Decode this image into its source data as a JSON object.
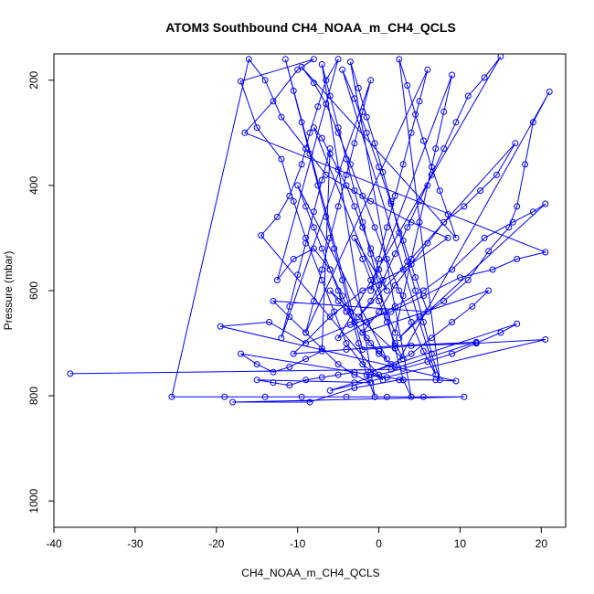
{
  "chart_data": {
    "type": "scatter",
    "title": "ATOM3 Southbound CH4_NOAA_m_CH4_QCLS",
    "xlabel": "CH4_NOAA_m_CH4_QCLS",
    "ylabel": "Pressure (mbar)",
    "xlim": [
      -40,
      23
    ],
    "ylim": [
      1050,
      150
    ],
    "y_reversed": true,
    "x_ticks": [
      -40,
      -30,
      -20,
      -10,
      0,
      10,
      20
    ],
    "x_tick_labels": [
      "-40",
      "-30",
      "-20",
      "-10",
      "0",
      "10",
      "20"
    ],
    "y_ticks": [
      200,
      400,
      600,
      800,
      1000
    ],
    "y_tick_labels": [
      "200",
      "400",
      "600",
      "800",
      "1000"
    ],
    "grid": false,
    "legend": "none",
    "series": [
      {
        "color": "#0000ff",
        "marker": "open-circle",
        "connected": true,
        "points": [
          [
            -38.0,
            758
          ],
          [
            1.5,
            750
          ],
          [
            12.0,
            698
          ],
          [
            2.0,
            705
          ],
          [
            -4.0,
            712
          ],
          [
            -10.5,
            720
          ],
          [
            -6.0,
            650
          ],
          [
            -2.0,
            600
          ],
          [
            3.0,
            560
          ],
          [
            8.5,
            500
          ],
          [
            4.0,
            470
          ],
          [
            -1.0,
            430
          ],
          [
            -6.5,
            380
          ],
          [
            -9.0,
            330
          ],
          [
            -12.0,
            270
          ],
          [
            -14.0,
            200
          ],
          [
            -16.0,
            160
          ],
          [
            -25.5,
            802
          ],
          [
            -19.0,
            802
          ],
          [
            -14.0,
            802
          ],
          [
            -9.5,
            802
          ],
          [
            -4.0,
            802
          ],
          [
            1.0,
            802
          ],
          [
            5.5,
            802
          ],
          [
            10.5,
            802
          ],
          [
            -18.0,
            812
          ],
          [
            -8.5,
            812
          ],
          [
            -3.0,
            785
          ],
          [
            2.5,
            770
          ],
          [
            7.0,
            770
          ],
          [
            9.5,
            772
          ],
          [
            -19.5,
            668
          ],
          [
            -13.5,
            660
          ],
          [
            -9.0,
            700
          ],
          [
            -3.5,
            665
          ],
          [
            1.5,
            640
          ],
          [
            5.5,
            610
          ],
          [
            10.0,
            575
          ],
          [
            14.0,
            560
          ],
          [
            17.0,
            540
          ],
          [
            20.5,
            527
          ],
          [
            -16.5,
            300
          ],
          [
            -13.0,
            240
          ],
          [
            -10.0,
            180
          ],
          [
            -8.0,
            160
          ],
          [
            -17.0,
            202
          ],
          [
            -15.0,
            290
          ],
          [
            -12.0,
            350
          ],
          [
            -10.5,
            430
          ],
          [
            -9.0,
            500
          ],
          [
            -7.0,
            580
          ],
          [
            -5.5,
            640
          ],
          [
            -4.0,
            700
          ],
          [
            -2.0,
            740
          ],
          [
            0.5,
            770
          ],
          [
            -14.5,
            495
          ],
          [
            -12.5,
            460
          ],
          [
            -11.0,
            420
          ],
          [
            -9.5,
            360
          ],
          [
            -8.5,
            300
          ],
          [
            -7.5,
            250
          ],
          [
            -6.5,
            200
          ],
          [
            -5.0,
            160
          ],
          [
            -12.5,
            580
          ],
          [
            -10.5,
            540
          ],
          [
            -8.0,
            520
          ],
          [
            -6.0,
            560
          ],
          [
            -4.5,
            610
          ],
          [
            -3.0,
            660
          ],
          [
            -1.5,
            690
          ],
          [
            0.0,
            720
          ],
          [
            2.0,
            745
          ],
          [
            21.0,
            222
          ],
          [
            19.0,
            280
          ],
          [
            18.0,
            360
          ],
          [
            17.0,
            440
          ],
          [
            16.0,
            480
          ],
          [
            13.5,
            525
          ],
          [
            11.0,
            580
          ],
          [
            8.0,
            620
          ],
          [
            5.0,
            650
          ],
          [
            2.5,
            690
          ],
          [
            20.5,
            435
          ],
          [
            19.0,
            450
          ],
          [
            16.5,
            470
          ],
          [
            13.0,
            500
          ],
          [
            9.0,
            560
          ],
          [
            5.5,
            600
          ],
          [
            2.0,
            630
          ],
          [
            -1.5,
            660
          ],
          [
            -5.0,
            690
          ],
          [
            15.0,
            155
          ],
          [
            13.0,
            195
          ],
          [
            11.0,
            230
          ],
          [
            9.5,
            280
          ],
          [
            8.0,
            330
          ],
          [
            6.5,
            380
          ],
          [
            5.0,
            430
          ],
          [
            3.5,
            480
          ],
          [
            2.0,
            530
          ],
          [
            0.5,
            580
          ],
          [
            -1.0,
            620
          ],
          [
            -2.5,
            650
          ],
          [
            16.8,
            320
          ],
          [
            14.5,
            380
          ],
          [
            12.5,
            410
          ],
          [
            10.5,
            440
          ],
          [
            8.0,
            470
          ],
          [
            6.0,
            510
          ],
          [
            4.0,
            550
          ],
          [
            2.0,
            590
          ],
          [
            0.0,
            640
          ],
          [
            -2.0,
            680
          ],
          [
            13.5,
            600
          ],
          [
            11.5,
            630
          ],
          [
            9.0,
            660
          ],
          [
            6.5,
            690
          ],
          [
            4.0,
            720
          ],
          [
            1.5,
            740
          ],
          [
            -1.0,
            755
          ],
          [
            17.0,
            663
          ],
          [
            15.0,
            680
          ],
          [
            12.0,
            700
          ],
          [
            9.0,
            720
          ],
          [
            6.0,
            735
          ],
          [
            3.0,
            748
          ],
          [
            0.0,
            760
          ],
          [
            -3.0,
            775
          ],
          [
            -6.0,
            790
          ],
          [
            20.5,
            693
          ],
          [
            12.0,
            700
          ],
          [
            4.0,
            705
          ],
          [
            -2.0,
            712
          ],
          [
            -11.5,
            160
          ],
          [
            -10.5,
            220
          ],
          [
            -9.5,
            280
          ],
          [
            -8.5,
            340
          ],
          [
            -7.5,
            400
          ],
          [
            -6.5,
            460
          ],
          [
            -5.5,
            520
          ],
          [
            -4.5,
            580
          ],
          [
            -3.5,
            640
          ],
          [
            -2.5,
            700
          ],
          [
            -1.5,
            760
          ],
          [
            -0.5,
            802
          ],
          [
            -7.0,
            170
          ],
          [
            -6.0,
            230
          ],
          [
            -5.0,
            290
          ],
          [
            -4.0,
            350
          ],
          [
            -3.0,
            410
          ],
          [
            -2.0,
            470
          ],
          [
            -1.0,
            530
          ],
          [
            0.0,
            590
          ],
          [
            1.0,
            650
          ],
          [
            2.0,
            710
          ],
          [
            3.0,
            770
          ],
          [
            4.0,
            802
          ],
          [
            -3.5,
            165
          ],
          [
            -2.5,
            215
          ],
          [
            -1.5,
            270
          ],
          [
            -0.5,
            320
          ],
          [
            0.5,
            375
          ],
          [
            1.5,
            430
          ],
          [
            2.5,
            490
          ],
          [
            3.5,
            545
          ],
          [
            4.5,
            600
          ],
          [
            5.5,
            660
          ],
          [
            6.5,
            720
          ],
          [
            7.5,
            770
          ],
          [
            2.5,
            160
          ],
          [
            3.5,
            210
          ],
          [
            4.5,
            265
          ],
          [
            5.5,
            315
          ],
          [
            6.5,
            365
          ],
          [
            7.5,
            410
          ],
          [
            8.5,
            455
          ],
          [
            9.5,
            500
          ],
          [
            -9.5,
            175
          ],
          [
            -8.0,
            205
          ],
          [
            -6.5,
            245
          ],
          [
            -5.0,
            300
          ],
          [
            -3.5,
            360
          ],
          [
            -2.0,
            420
          ],
          [
            -0.5,
            480
          ],
          [
            1.0,
            540
          ],
          [
            2.5,
            600
          ],
          [
            4.0,
            660
          ],
          [
            5.5,
            715
          ],
          [
            7.0,
            760
          ],
          [
            -4.5,
            180
          ],
          [
            -3.0,
            235
          ],
          [
            -1.5,
            300
          ],
          [
            0.0,
            365
          ],
          [
            1.5,
            435
          ],
          [
            3.0,
            505
          ],
          [
            4.5,
            575
          ],
          [
            6.0,
            640
          ],
          [
            -13.0,
            620
          ],
          [
            -11.0,
            650
          ],
          [
            -9.0,
            680
          ],
          [
            -7.0,
            710
          ],
          [
            -5.0,
            740
          ],
          [
            -3.0,
            760
          ],
          [
            -1.0,
            775
          ],
          [
            -15.0,
            770
          ],
          [
            -13.0,
            775
          ],
          [
            -11.0,
            780
          ],
          [
            -9.0,
            770
          ],
          [
            -7.0,
            765
          ],
          [
            -5.0,
            760
          ],
          [
            -3.0,
            755
          ],
          [
            -1.0,
            760
          ],
          [
            1.0,
            765
          ],
          [
            3.0,
            770
          ],
          [
            -17.0,
            720
          ],
          [
            -15.0,
            740
          ],
          [
            -13.0,
            755
          ],
          [
            -11.0,
            745
          ],
          [
            -9.0,
            730
          ],
          [
            -7.0,
            715
          ],
          [
            -6.0,
            330
          ],
          [
            -7.0,
            390
          ],
          [
            -8.0,
            450
          ],
          [
            -9.0,
            510
          ],
          [
            -10.0,
            570
          ],
          [
            -11.0,
            630
          ],
          [
            -12.0,
            690
          ],
          [
            -1.0,
            200
          ],
          [
            -2.0,
            260
          ],
          [
            -3.0,
            320
          ],
          [
            -4.0,
            380
          ],
          [
            -5.0,
            440
          ],
          [
            -6.0,
            500
          ],
          [
            -7.0,
            560
          ],
          [
            -8.0,
            620
          ],
          [
            -9.0,
            680
          ],
          [
            6.0,
            180
          ],
          [
            5.0,
            240
          ],
          [
            4.0,
            300
          ],
          [
            3.0,
            360
          ],
          [
            2.0,
            420
          ],
          [
            1.0,
            480
          ],
          [
            0.0,
            540
          ],
          [
            -1.0,
            600
          ],
          [
            9.0,
            190
          ],
          [
            8.0,
            260
          ],
          [
            7.0,
            330
          ],
          [
            6.0,
            400
          ],
          [
            5.0,
            470
          ],
          [
            4.0,
            540
          ],
          [
            3.0,
            610
          ],
          [
            2.0,
            680
          ],
          [
            -8.0,
            290
          ],
          [
            -7.0,
            310
          ],
          [
            -6.0,
            340
          ],
          [
            -5.0,
            370
          ],
          [
            -4.0,
            400
          ],
          [
            -3.0,
            440
          ],
          [
            -2.0,
            480
          ],
          [
            -1.0,
            520
          ],
          [
            0.0,
            560
          ],
          [
            1.0,
            600
          ],
          [
            -3.0,
            500
          ],
          [
            -2.0,
            540
          ],
          [
            -1.0,
            580
          ],
          [
            0.0,
            620
          ],
          [
            1.0,
            660
          ],
          [
            2.0,
            700
          ],
          [
            3.0,
            730
          ],
          [
            -6.0,
            600
          ],
          [
            -5.0,
            620
          ],
          [
            -4.0,
            640
          ],
          [
            -3.0,
            660
          ],
          [
            -2.0,
            680
          ],
          [
            -1.0,
            700
          ],
          [
            0.0,
            715
          ],
          [
            1.0,
            730
          ],
          [
            -10.0,
            400
          ],
          [
            -9.0,
            440
          ],
          [
            -8.0,
            480
          ],
          [
            -7.0,
            520
          ],
          [
            -6.0,
            560
          ],
          [
            -5.0,
            600
          ],
          [
            -4.0,
            640
          ]
        ]
      }
    ]
  }
}
